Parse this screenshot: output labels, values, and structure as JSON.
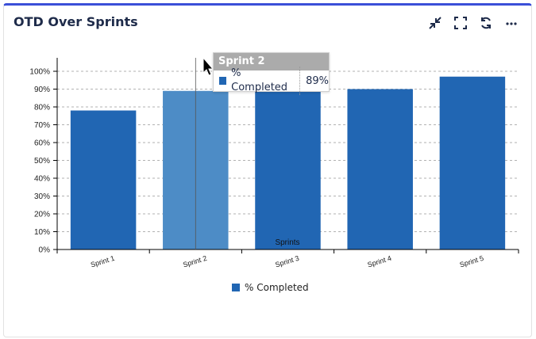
{
  "widget": {
    "title": "OTD Over Sprints"
  },
  "toolbar": {
    "collapse_icon": "collapse-icon",
    "fullscreen_icon": "fullscreen-icon",
    "refresh_icon": "refresh-icon",
    "more_icon": "more-icon"
  },
  "tooltip": {
    "title": "Sprint 2",
    "series": "% Completed",
    "value": "89%"
  },
  "colors": {
    "bar": "#2166b3",
    "bar_hover": "#4d8cc6",
    "accent": "#3a4fd8"
  },
  "chart_data": {
    "type": "bar",
    "categories": [
      "Sprint 1",
      "Sprint 2",
      "Sprint 3",
      "Sprint 4",
      "Sprint 5"
    ],
    "series": [
      {
        "name": "% Completed",
        "values": [
          78,
          89,
          90,
          90,
          97
        ]
      }
    ],
    "xlabel": "Sprints",
    "ylabel": "",
    "ylim": [
      0,
      100
    ],
    "yticks": [
      "0%",
      "10%",
      "20%",
      "30%",
      "40%",
      "50%",
      "60%",
      "70%",
      "80%",
      "90%",
      "100%"
    ],
    "grid": true,
    "legend": "bottom",
    "highlighted_category": "Sprint 2"
  }
}
